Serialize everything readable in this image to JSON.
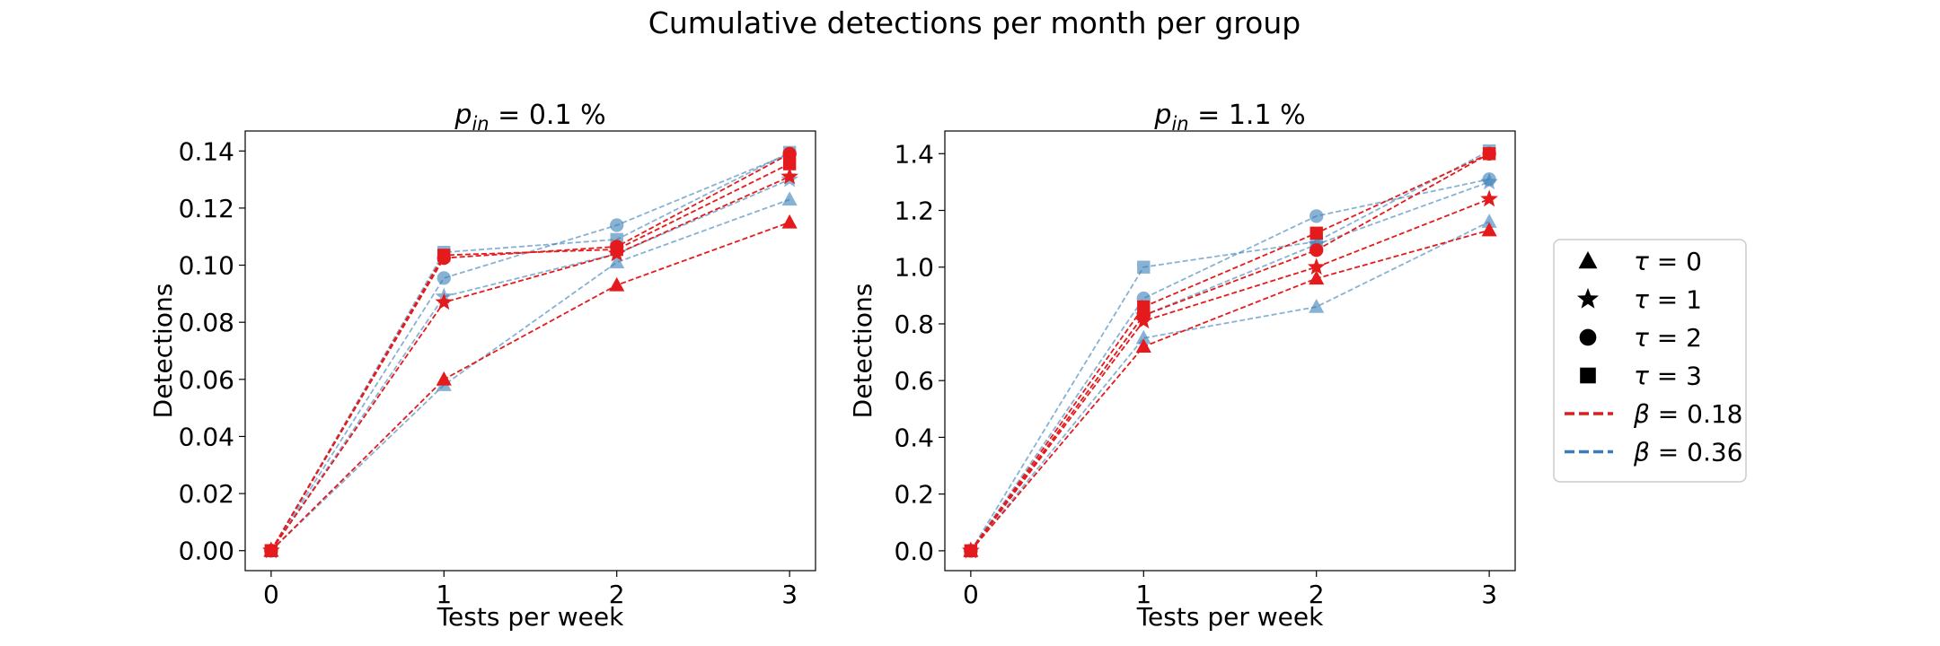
{
  "figure": {
    "title": "Cumulative detections per month per group"
  },
  "legend": {
    "placement": "right",
    "markers": [
      {
        "marker": "triangle",
        "prefix": "τ",
        "value": "= 0"
      },
      {
        "marker": "star",
        "prefix": "τ",
        "value": "= 1"
      },
      {
        "marker": "circle",
        "prefix": "τ",
        "value": "= 2"
      },
      {
        "marker": "square",
        "prefix": "τ",
        "value": "= 3"
      }
    ],
    "lines": [
      {
        "color": "#e41a1c",
        "prefix": "β",
        "value": "= 0.18"
      },
      {
        "color": "#377eb8",
        "prefix": "β",
        "value": "= 0.36"
      }
    ]
  },
  "colors": {
    "beta_0.18": "#e41a1c",
    "beta_0.36": "#377eb8"
  },
  "chart_data": [
    {
      "type": "line",
      "title_var": "p",
      "title_sub": "in",
      "title_rest": " = 0.1 %",
      "xlabel": "Tests per week",
      "ylabel": "Detections",
      "x": [
        0,
        1,
        2,
        3
      ],
      "xticks": [
        "0",
        "1",
        "2",
        "3"
      ],
      "yticks": [
        "0.00",
        "0.02",
        "0.04",
        "0.06",
        "0.08",
        "0.10",
        "0.12",
        "0.14"
      ],
      "ytick_values": [
        0,
        0.02,
        0.04,
        0.06,
        0.08,
        0.1,
        0.12,
        0.14
      ],
      "xlim": [
        -0.15,
        3.15
      ],
      "ylim": [
        -0.007,
        0.147
      ],
      "grid": false,
      "series": [
        {
          "beta": 0.36,
          "tau": 0,
          "marker": "triangle",
          "values": [
            0,
            0.058,
            0.101,
            0.123
          ]
        },
        {
          "beta": 0.36,
          "tau": 1,
          "marker": "star",
          "values": [
            0,
            0.089,
            0.104,
            0.13
          ]
        },
        {
          "beta": 0.36,
          "tau": 2,
          "marker": "circle",
          "values": [
            0,
            0.0955,
            0.114,
            0.139
          ]
        },
        {
          "beta": 0.36,
          "tau": 3,
          "marker": "square",
          "values": [
            0,
            0.1045,
            0.109,
            0.1395
          ]
        },
        {
          "beta": 0.18,
          "tau": 0,
          "marker": "triangle",
          "values": [
            0,
            0.06,
            0.093,
            0.115
          ]
        },
        {
          "beta": 0.18,
          "tau": 1,
          "marker": "star",
          "values": [
            0,
            0.087,
            0.104,
            0.131
          ]
        },
        {
          "beta": 0.18,
          "tau": 2,
          "marker": "circle",
          "values": [
            0,
            0.1025,
            0.1065,
            0.139
          ]
        },
        {
          "beta": 0.18,
          "tau": 3,
          "marker": "square",
          "values": [
            0,
            0.1035,
            0.1055,
            0.1355
          ]
        }
      ]
    },
    {
      "type": "line",
      "title_var": "p",
      "title_sub": "in",
      "title_rest": " = 1.1 %",
      "xlabel": "Tests per week",
      "ylabel": "Detections",
      "x": [
        0,
        1,
        2,
        3
      ],
      "xticks": [
        "0",
        "1",
        "2",
        "3"
      ],
      "yticks": [
        "0.0",
        "0.2",
        "0.4",
        "0.6",
        "0.8",
        "1.0",
        "1.2",
        "1.4"
      ],
      "ytick_values": [
        0,
        0.2,
        0.4,
        0.6,
        0.8,
        1.0,
        1.2,
        1.4
      ],
      "xlim": [
        -0.15,
        3.15
      ],
      "ylim": [
        -0.07,
        1.48
      ],
      "grid": false,
      "series": [
        {
          "beta": 0.36,
          "tau": 0,
          "marker": "triangle",
          "values": [
            0,
            0.75,
            0.86,
            1.16
          ]
        },
        {
          "beta": 0.36,
          "tau": 1,
          "marker": "star",
          "values": [
            0,
            0.83,
            1.08,
            1.3
          ]
        },
        {
          "beta": 0.36,
          "tau": 2,
          "marker": "circle",
          "values": [
            0,
            0.89,
            1.18,
            1.31
          ]
        },
        {
          "beta": 0.36,
          "tau": 3,
          "marker": "square",
          "values": [
            0,
            1.0,
            1.09,
            1.41
          ]
        },
        {
          "beta": 0.18,
          "tau": 0,
          "marker": "triangle",
          "values": [
            0,
            0.72,
            0.96,
            1.13
          ]
        },
        {
          "beta": 0.18,
          "tau": 1,
          "marker": "star",
          "values": [
            0,
            0.81,
            1.0,
            1.24
          ]
        },
        {
          "beta": 0.18,
          "tau": 2,
          "marker": "circle",
          "values": [
            0,
            0.83,
            1.06,
            1.4
          ]
        },
        {
          "beta": 0.18,
          "tau": 3,
          "marker": "square",
          "values": [
            0,
            0.86,
            1.12,
            1.4
          ]
        }
      ]
    }
  ]
}
